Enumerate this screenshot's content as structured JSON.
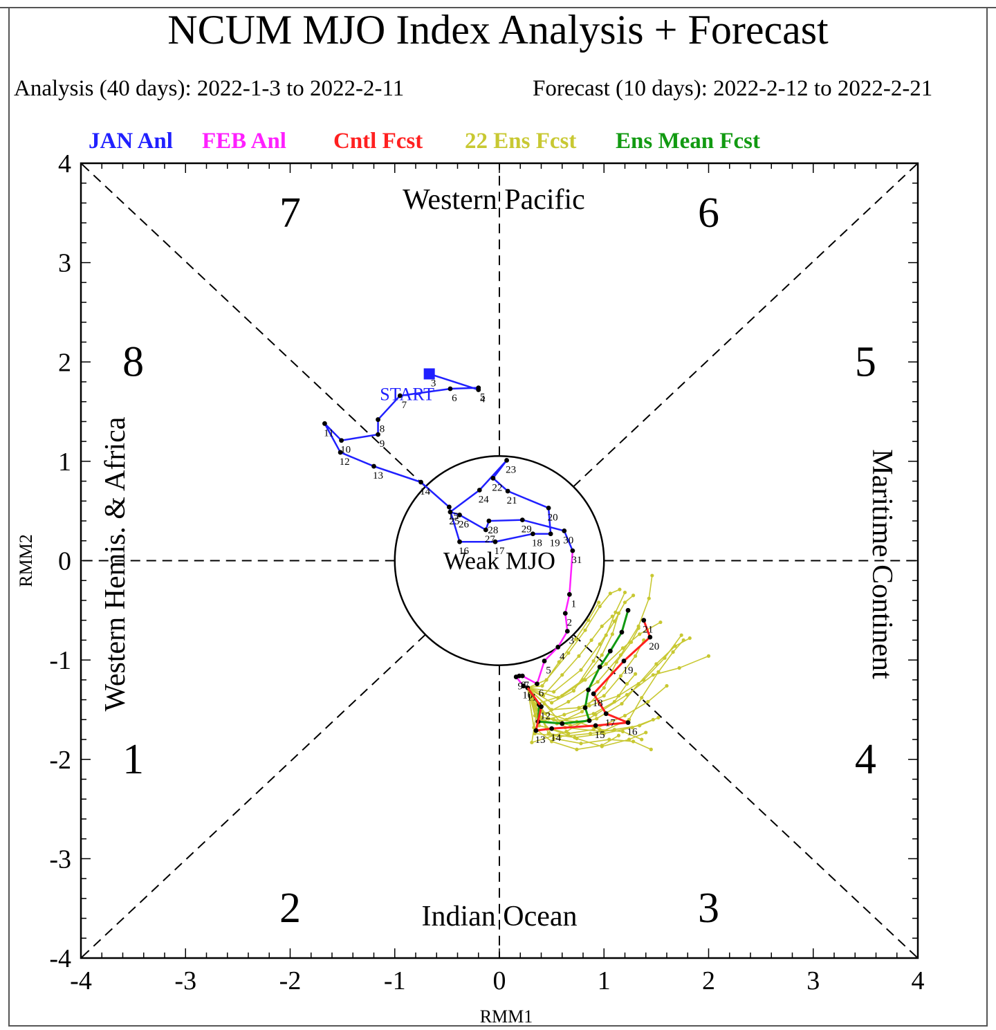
{
  "title": "NCUM MJO Index Analysis + Forecast",
  "subtitle_analysis": "Analysis (40 days): 2022-1-3 to 2022-2-11",
  "subtitle_forecast": "Forecast (10 days): 2022-2-12 to 2022-2-21",
  "legend": [
    {
      "label": "JAN Anl",
      "color": "#2020ff"
    },
    {
      "label": "FEB Anl",
      "color": "#ff20ff"
    },
    {
      "label": "Cntl Fcst",
      "color": "#ff2020"
    },
    {
      "label": "22 Ens Fcst",
      "color": "#c8c832"
    },
    {
      "label": "Ens Mean Fcst",
      "color": "#129a12"
    }
  ],
  "chart_data": {
    "type": "scatter",
    "title": "NCUM MJO Index Analysis + Forecast",
    "xlabel": "RMM1",
    "ylabel": "RMM2",
    "xlim": [
      -4,
      4
    ],
    "ylim": [
      -4,
      4
    ],
    "xticks": [
      "-4",
      "-3",
      "-2",
      "-1",
      "0",
      "1",
      "2",
      "3",
      "4"
    ],
    "yticks": [
      "-4",
      "-3",
      "-2",
      "-1",
      "0",
      "1",
      "2",
      "3",
      "4"
    ],
    "weak_circle_radius": 1,
    "weak_label": "Weak MJO",
    "start_label": "START",
    "phases": [
      {
        "label": "1",
        "x": -3.5,
        "y": -2.0
      },
      {
        "label": "2",
        "x": -2.0,
        "y": -3.5
      },
      {
        "label": "3",
        "x": 2.0,
        "y": -3.5
      },
      {
        "label": "4",
        "x": 3.5,
        "y": -2.0
      },
      {
        "label": "5",
        "x": 3.5,
        "y": 2.0
      },
      {
        "label": "6",
        "x": 2.0,
        "y": 3.5
      },
      {
        "label": "7",
        "x": -2.0,
        "y": 3.5
      },
      {
        "label": "8",
        "x": -3.5,
        "y": 2.0
      }
    ],
    "regions": [
      {
        "label": "Western Pacific",
        "side": "top"
      },
      {
        "label": "Indian Ocean",
        "side": "bottom"
      },
      {
        "label": "Western Hemis. & Africa",
        "side": "left"
      },
      {
        "label": "Maritime Continent",
        "side": "right"
      }
    ],
    "series": [
      {
        "name": "JAN Anl",
        "color": "#2020ff",
        "points": [
          {
            "d": "3",
            "x": -0.67,
            "y": 1.88
          },
          {
            "d": "4",
            "x": -0.2,
            "y": 1.72
          },
          {
            "d": "5",
            "x": -0.2,
            "y": 1.74
          },
          {
            "d": "6",
            "x": -0.47,
            "y": 1.73
          },
          {
            "d": "7",
            "x": -0.95,
            "y": 1.66
          },
          {
            "d": "8",
            "x": -1.16,
            "y": 1.42
          },
          {
            "d": "9",
            "x": -1.16,
            "y": 1.27
          },
          {
            "d": "10",
            "x": -1.51,
            "y": 1.21
          },
          {
            "d": "11",
            "x": -1.67,
            "y": 1.38
          },
          {
            "d": "12",
            "x": -1.52,
            "y": 1.09
          },
          {
            "d": "13",
            "x": -1.2,
            "y": 0.95
          },
          {
            "d": "14",
            "x": -0.75,
            "y": 0.79
          },
          {
            "d": "15",
            "x": -0.48,
            "y": 0.54
          },
          {
            "d": "16",
            "x": -0.38,
            "y": 0.19
          },
          {
            "d": "17",
            "x": -0.04,
            "y": 0.19
          },
          {
            "d": "18",
            "x": 0.32,
            "y": 0.27
          },
          {
            "d": "19",
            "x": 0.49,
            "y": 0.27
          },
          {
            "d": "20",
            "x": 0.47,
            "y": 0.53
          },
          {
            "d": "21",
            "x": 0.08,
            "y": 0.7
          },
          {
            "d": "22",
            "x": -0.06,
            "y": 0.83
          },
          {
            "d": "23",
            "x": 0.07,
            "y": 1.01
          },
          {
            "d": "24",
            "x": -0.19,
            "y": 0.71
          },
          {
            "d": "25",
            "x": -0.47,
            "y": 0.49
          },
          {
            "d": "26",
            "x": -0.38,
            "y": 0.46
          },
          {
            "d": "27",
            "x": -0.13,
            "y": 0.31
          },
          {
            "d": "28",
            "x": -0.1,
            "y": 0.4
          },
          {
            "d": "29",
            "x": 0.22,
            "y": 0.41
          },
          {
            "d": "30",
            "x": 0.62,
            "y": 0.3
          },
          {
            "d": "31",
            "x": 0.7,
            "y": 0.1
          }
        ]
      },
      {
        "name": "FEB Anl",
        "color": "#ff20ff",
        "points": [
          {
            "d": "1",
            "x": 0.67,
            "y": -0.34
          },
          {
            "d": "2",
            "x": 0.63,
            "y": -0.53
          },
          {
            "d": "3",
            "x": 0.65,
            "y": -0.71
          },
          {
            "d": "4",
            "x": 0.56,
            "y": -0.87
          },
          {
            "d": "5",
            "x": 0.43,
            "y": -1.01
          },
          {
            "d": "6",
            "x": 0.36,
            "y": -1.24
          },
          {
            "d": "7",
            "x": 0.22,
            "y": -1.16
          },
          {
            "d": "8",
            "x": 0.19,
            "y": -1.16
          },
          {
            "d": "9",
            "x": 0.16,
            "y": -1.17
          },
          {
            "d": "10",
            "x": 0.23,
            "y": -1.26
          },
          {
            "d": "11",
            "x": 0.27,
            "y": -1.28
          }
        ]
      },
      {
        "name": "Cntl Fcst",
        "color": "#ff2020",
        "points": [
          {
            "d": "12",
            "x": 0.4,
            "y": -1.47
          },
          {
            "d": "13",
            "x": 0.35,
            "y": -1.71
          },
          {
            "d": "14",
            "x": 0.5,
            "y": -1.69
          },
          {
            "d": "15",
            "x": 0.92,
            "y": -1.66
          },
          {
            "d": "16",
            "x": 1.23,
            "y": -1.63
          },
          {
            "d": "17",
            "x": 1.02,
            "y": -1.54
          },
          {
            "d": "18",
            "x": 0.9,
            "y": -1.34
          },
          {
            "d": "19",
            "x": 1.19,
            "y": -1.01
          },
          {
            "d": "20",
            "x": 1.44,
            "y": -0.77
          },
          {
            "d": "21",
            "x": 1.38,
            "y": -0.6
          }
        ]
      },
      {
        "name": "Ens Mean Fcst",
        "color": "#129a12",
        "points": [
          {
            "d": "12",
            "x": 0.38,
            "y": -1.45
          },
          {
            "d": "13",
            "x": 0.37,
            "y": -1.62
          },
          {
            "d": "14",
            "x": 0.6,
            "y": -1.64
          },
          {
            "d": "15",
            "x": 0.86,
            "y": -1.61
          },
          {
            "d": "16",
            "x": 0.82,
            "y": -1.48
          },
          {
            "d": "17",
            "x": 0.85,
            "y": -1.3
          },
          {
            "d": "18",
            "x": 0.96,
            "y": -1.07
          },
          {
            "d": "19",
            "x": 1.06,
            "y": -0.91
          },
          {
            "d": "20",
            "x": 1.17,
            "y": -0.72
          },
          {
            "d": "21",
            "x": 1.23,
            "y": -0.5
          }
        ]
      },
      {
        "name": "22 Ens Fcst",
        "color": "#c8c832",
        "members": [
          [
            [
              0.27,
              -1.28
            ],
            [
              0.4,
              -1.58
            ],
            [
              0.52,
              -1.79
            ],
            [
              0.78,
              -1.84
            ],
            [
              1.05,
              -1.8
            ],
            [
              1.28,
              -1.82
            ],
            [
              1.45,
              -1.9
            ]
          ],
          [
            [
              0.27,
              -1.28
            ],
            [
              0.36,
              -1.5
            ],
            [
              0.31,
              -1.83
            ],
            [
              0.64,
              -1.72
            ],
            [
              0.92,
              -1.55
            ],
            [
              1.22,
              -1.35
            ],
            [
              1.47,
              -1.15
            ],
            [
              1.72,
              -1.08
            ],
            [
              2.0,
              -0.96
            ]
          ],
          [
            [
              0.27,
              -1.28
            ],
            [
              0.43,
              -1.44
            ],
            [
              0.63,
              -1.68
            ],
            [
              0.98,
              -1.72
            ],
            [
              1.24,
              -1.6
            ],
            [
              1.36,
              -1.38
            ],
            [
              1.52,
              -1.12
            ],
            [
              1.66,
              -0.92
            ],
            [
              1.76,
              -0.8
            ]
          ],
          [
            [
              0.27,
              -1.28
            ],
            [
              0.5,
              -1.43
            ],
            [
              0.71,
              -1.31
            ],
            [
              0.9,
              -1.01
            ],
            [
              1.02,
              -0.75
            ],
            [
              1.11,
              -0.52
            ],
            [
              1.2,
              -0.32
            ]
          ],
          [
            [
              0.27,
              -1.28
            ],
            [
              0.52,
              -1.32
            ],
            [
              0.78,
              -1.1
            ],
            [
              0.96,
              -0.84
            ],
            [
              1.1,
              -0.61
            ],
            [
              1.2,
              -0.42
            ],
            [
              1.28,
              -0.35
            ]
          ],
          [
            [
              0.27,
              -1.28
            ],
            [
              0.45,
              -1.2
            ],
            [
              0.66,
              -0.93
            ],
            [
              0.82,
              -0.7
            ],
            [
              0.96,
              -0.46
            ],
            [
              1.06,
              -0.33
            ],
            [
              1.15,
              -0.29
            ]
          ],
          [
            [
              0.27,
              -1.28
            ],
            [
              0.41,
              -1.26
            ],
            [
              0.57,
              -1.02
            ],
            [
              0.73,
              -0.79
            ],
            [
              0.85,
              -0.6
            ],
            [
              0.95,
              -0.42
            ]
          ],
          [
            [
              0.27,
              -1.28
            ],
            [
              0.39,
              -1.62
            ],
            [
              0.62,
              -1.55
            ],
            [
              0.86,
              -1.46
            ],
            [
              1.14,
              -1.36
            ],
            [
              1.38,
              -1.2
            ],
            [
              1.58,
              -0.98
            ],
            [
              1.74,
              -0.75
            ]
          ],
          [
            [
              0.27,
              -1.28
            ],
            [
              0.34,
              -1.74
            ],
            [
              0.58,
              -1.77
            ],
            [
              0.87,
              -1.74
            ],
            [
              1.1,
              -1.7
            ],
            [
              1.34,
              -1.66
            ],
            [
              1.52,
              -1.58
            ]
          ],
          [
            [
              0.27,
              -1.28
            ],
            [
              0.45,
              -1.68
            ],
            [
              0.74,
              -1.79
            ],
            [
              0.98,
              -1.87
            ],
            [
              1.24,
              -1.8
            ],
            [
              1.4,
              -1.73
            ]
          ],
          [
            [
              0.27,
              -1.28
            ],
            [
              0.44,
              -1.54
            ],
            [
              0.66,
              -1.42
            ],
            [
              0.94,
              -1.22
            ],
            [
              1.16,
              -0.95
            ],
            [
              1.33,
              -0.66
            ],
            [
              1.43,
              -0.38
            ],
            [
              1.46,
              -0.15
            ]
          ],
          [
            [
              0.27,
              -1.28
            ],
            [
              0.38,
              -1.6
            ],
            [
              0.55,
              -1.64
            ],
            [
              0.79,
              -1.52
            ],
            [
              1.0,
              -1.28
            ],
            [
              1.12,
              -1.02
            ],
            [
              1.26,
              -0.82
            ],
            [
              1.33,
              -0.68
            ]
          ],
          [
            [
              0.27,
              -1.28
            ],
            [
              0.47,
              -1.59
            ],
            [
              0.68,
              -1.66
            ],
            [
              0.93,
              -1.59
            ],
            [
              1.17,
              -1.44
            ],
            [
              1.33,
              -1.24
            ],
            [
              1.5,
              -1.04
            ],
            [
              1.68,
              -0.86
            ],
            [
              1.82,
              -0.78
            ]
          ],
          [
            [
              0.27,
              -1.28
            ],
            [
              0.33,
              -1.68
            ],
            [
              0.5,
              -1.82
            ],
            [
              0.74,
              -1.9
            ],
            [
              0.98,
              -1.86
            ],
            [
              1.14,
              -1.76
            ]
          ],
          [
            [
              0.27,
              -1.28
            ],
            [
              0.56,
              -1.38
            ],
            [
              0.8,
              -1.2
            ],
            [
              0.98,
              -0.95
            ],
            [
              1.08,
              -0.74
            ],
            [
              1.14,
              -0.53
            ]
          ],
          [
            [
              0.27,
              -1.28
            ],
            [
              0.41,
              -1.52
            ],
            [
              0.64,
              -1.6
            ],
            [
              0.9,
              -1.54
            ],
            [
              1.1,
              -1.42
            ],
            [
              1.22,
              -1.24
            ],
            [
              1.3,
              -1.14
            ]
          ],
          [
            [
              0.27,
              -1.28
            ],
            [
              0.36,
              -1.44
            ],
            [
              0.6,
              -1.36
            ],
            [
              0.82,
              -1.2
            ],
            [
              1.02,
              -1.04
            ],
            [
              1.18,
              -0.88
            ],
            [
              1.34,
              -0.74
            ],
            [
              1.54,
              -0.62
            ]
          ],
          [
            [
              0.27,
              -1.28
            ],
            [
              0.47,
              -1.74
            ],
            [
              0.72,
              -1.78
            ],
            [
              1.0,
              -1.74
            ],
            [
              1.27,
              -1.68
            ],
            [
              1.47,
              -1.6
            ]
          ],
          [
            [
              0.27,
              -1.28
            ],
            [
              0.42,
              -1.36
            ],
            [
              0.6,
              -1.15
            ],
            [
              0.76,
              -0.96
            ],
            [
              0.88,
              -0.8
            ],
            [
              0.98,
              -0.66
            ],
            [
              1.08,
              -0.56
            ]
          ],
          [
            [
              0.27,
              -1.28
            ],
            [
              0.38,
              -1.66
            ],
            [
              0.66,
              -1.74
            ],
            [
              0.9,
              -1.7
            ],
            [
              1.2,
              -1.56
            ],
            [
              1.42,
              -1.42
            ],
            [
              1.6,
              -1.26
            ]
          ],
          [
            [
              0.27,
              -1.28
            ],
            [
              0.5,
              -1.5
            ],
            [
              0.76,
              -1.48
            ],
            [
              1.0,
              -1.36
            ],
            [
              1.16,
              -1.16
            ],
            [
              1.3,
              -0.96
            ],
            [
              1.38,
              -0.8
            ]
          ],
          [
            [
              0.27,
              -1.28
            ],
            [
              0.34,
              -1.56
            ],
            [
              0.52,
              -1.6
            ],
            [
              0.74,
              -1.62
            ],
            [
              0.96,
              -1.7
            ],
            [
              1.18,
              -1.72
            ],
            [
              1.36,
              -1.8
            ]
          ]
        ]
      }
    ]
  }
}
